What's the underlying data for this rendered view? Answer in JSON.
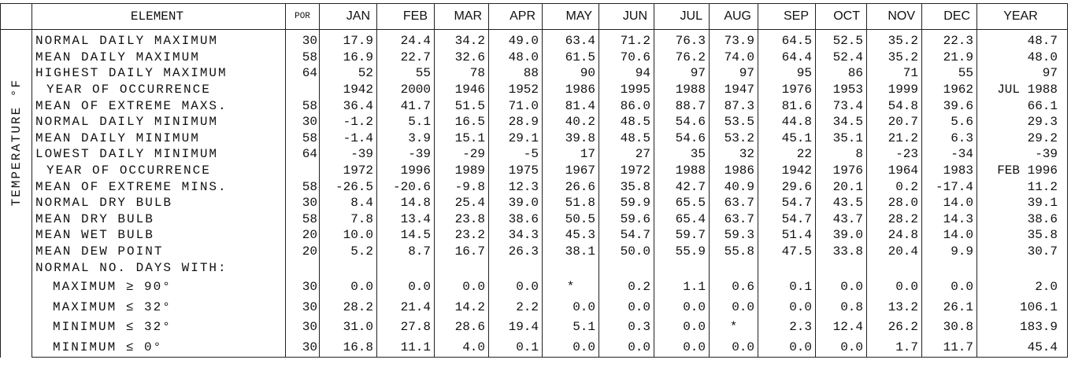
{
  "side_label": "TEMPERATURE °F",
  "header": {
    "element": "ELEMENT",
    "por": "POR",
    "months": [
      "JAN",
      "FEB",
      "MAR",
      "APR",
      "MAY",
      "JUN",
      "JUL",
      "AUG",
      "SEP",
      "OCT",
      "NOV",
      "DEC"
    ],
    "year": "YEAR"
  },
  "rows": [
    {
      "element": "NORMAL DAILY MAXIMUM",
      "por": "30",
      "values": [
        "17.9",
        "24.4",
        "34.2",
        "49.0",
        "63.4",
        "71.2",
        "76.3",
        "73.9",
        "64.5",
        "52.5",
        "35.2",
        "22.3",
        "48.7"
      ]
    },
    {
      "element": "MEAN DAILY MAXIMUM",
      "por": "58",
      "values": [
        "16.9",
        "22.7",
        "32.6",
        "48.0",
        "61.5",
        "70.6",
        "76.2",
        "74.0",
        "64.4",
        "52.4",
        "35.2",
        "21.9",
        "48.0"
      ]
    },
    {
      "element": "HIGHEST DAILY MAXIMUM",
      "por": "64",
      "values": [
        "52",
        "55",
        "78",
        "88",
        "90",
        "94",
        "97",
        "97",
        "95",
        "86",
        "71",
        "55",
        "97"
      ]
    },
    {
      "element": "YEAR OF OCCURRENCE",
      "values": [
        "1942",
        "2000",
        "1946",
        "1952",
        "1986",
        "1995",
        "1988",
        "1947",
        "1976",
        "1953",
        "1999",
        "1962",
        "JUL 1988"
      ]
    },
    {
      "element": "MEAN OF EXTREME MAXS.",
      "por": "58",
      "values": [
        "36.4",
        "41.7",
        "51.5",
        "71.0",
        "81.4",
        "86.0",
        "88.7",
        "87.3",
        "81.6",
        "73.4",
        "54.8",
        "39.6",
        "66.1"
      ]
    },
    {
      "element": "NORMAL DAILY MINIMUM",
      "por": "30",
      "values": [
        "-1.2",
        "5.1",
        "16.5",
        "28.9",
        "40.2",
        "48.5",
        "54.6",
        "53.5",
        "44.8",
        "34.5",
        "20.7",
        "5.6",
        "29.3"
      ]
    },
    {
      "element": "MEAN DAILY MINIMUM",
      "por": "58",
      "values": [
        "-1.4",
        "3.9",
        "15.1",
        "29.1",
        "39.8",
        "48.5",
        "54.6",
        "53.2",
        "45.1",
        "35.1",
        "21.2",
        "6.3",
        "29.2"
      ]
    },
    {
      "element": "LOWEST DAILY MINIMUM",
      "por": "64",
      "values": [
        "-39",
        "-39",
        "-29",
        "-5",
        "17",
        "27",
        "35",
        "32",
        "22",
        "8",
        "-23",
        "-34",
        "-39"
      ]
    },
    {
      "element": "YEAR OF OCCURRENCE",
      "values": [
        "1972",
        "1996",
        "1989",
        "1975",
        "1967",
        "1972",
        "1988",
        "1986",
        "1942",
        "1976",
        "1964",
        "1983",
        "FEB 1996"
      ]
    },
    {
      "element": "MEAN OF EXTREME MINS.",
      "por": "58",
      "values": [
        "-26.5",
        "-20.6",
        "-9.8",
        "12.3",
        "26.6",
        "35.8",
        "42.7",
        "40.9",
        "29.6",
        "20.1",
        "0.2",
        "-17.4",
        "11.2"
      ]
    },
    {
      "element": "NORMAL DRY BULB",
      "por": "30",
      "values": [
        "8.4",
        "14.8",
        "25.4",
        "39.0",
        "51.8",
        "59.9",
        "65.5",
        "63.7",
        "54.7",
        "43.5",
        "28.0",
        "14.0",
        "39.1"
      ]
    },
    {
      "element": "MEAN DRY BULB",
      "por": "58",
      "values": [
        "7.8",
        "13.4",
        "23.8",
        "38.6",
        "50.5",
        "59.6",
        "65.4",
        "63.7",
        "54.7",
        "43.7",
        "28.2",
        "14.3",
        "38.6"
      ]
    },
    {
      "element": "MEAN WET BULB",
      "por": "20",
      "values": [
        "10.0",
        "14.5",
        "23.2",
        "34.3",
        "45.3",
        "54.7",
        "59.7",
        "59.3",
        "51.4",
        "39.0",
        "24.8",
        "14.0",
        "35.8"
      ]
    },
    {
      "element": "MEAN DEW POINT",
      "por": "20",
      "values": [
        "5.2",
        "8.7",
        "16.7",
        "26.3",
        "38.1",
        "50.0",
        "55.9",
        "55.8",
        "47.5",
        "33.8",
        "20.4",
        "9.9",
        "30.7"
      ]
    }
  ],
  "days_with": {
    "label": "NORMAL NO. DAYS WITH:",
    "rows": [
      {
        "element": "MAXIMUM ≥ 90°",
        "por": "30",
        "values": [
          "0.0",
          "0.0",
          "0.0",
          "0.0",
          "*",
          "0.2",
          "1.1",
          "0.6",
          "0.1",
          "0.0",
          "0.0",
          "0.0",
          "2.0"
        ]
      },
      {
        "element": "MAXIMUM ≤ 32°",
        "por": "30",
        "values": [
          "28.2",
          "21.4",
          "14.2",
          "2.2",
          "0.0",
          "0.0",
          "0.0",
          "0.0",
          "0.0",
          "0.8",
          "13.2",
          "26.1",
          "106.1"
        ]
      },
      {
        "element": "MINIMUM ≤ 32°",
        "por": "30",
        "values": [
          "31.0",
          "27.8",
          "28.6",
          "19.4",
          "5.1",
          "0.3",
          "0.0",
          "*",
          "2.3",
          "12.4",
          "26.2",
          "30.8",
          "183.9"
        ]
      },
      {
        "element": "MINIMUM ≤ 0°",
        "por": "30",
        "values": [
          "16.8",
          "11.1",
          "4.0",
          "0.1",
          "0.0",
          "0.0",
          "0.0",
          "0.0",
          "0.0",
          "0.0",
          "1.7",
          "11.7",
          "45.4"
        ]
      }
    ]
  }
}
